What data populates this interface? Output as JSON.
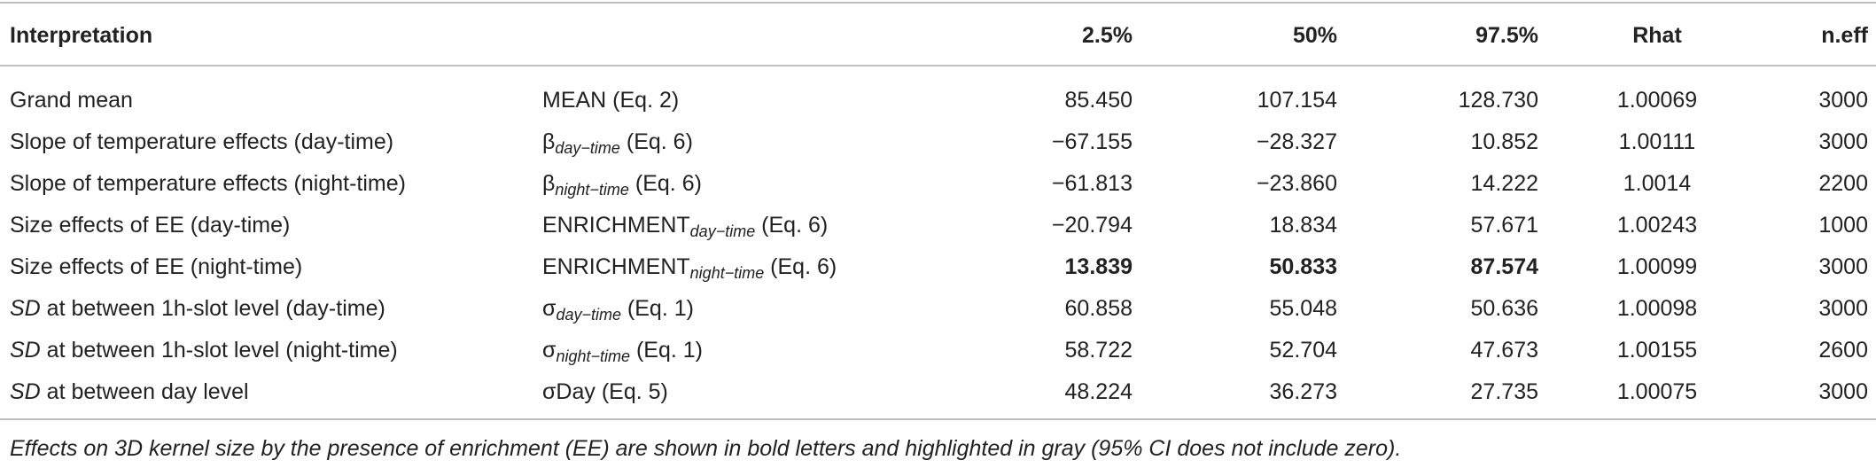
{
  "table": {
    "columns": [
      "Interpretation",
      "2.5%",
      "50%",
      "97.5%",
      "Rhat",
      "n.eff"
    ],
    "rows": [
      {
        "interpretation": {
          "text": "Grand mean"
        },
        "parameter": {
          "base": "MEAN",
          "suffix": " (Eq. 2)"
        },
        "values": [
          "85.450",
          "107.154",
          "128.730",
          "1.00069",
          "3000"
        ]
      },
      {
        "interpretation": {
          "text": "Slope of temperature effects (day-time)"
        },
        "parameter": {
          "base": "β",
          "sub": "day−time",
          "suffix": " (Eq. 6)"
        },
        "values": [
          "−67.155",
          "−28.327",
          "10.852",
          "1.00111",
          "3000"
        ]
      },
      {
        "interpretation": {
          "text": "Slope of temperature effects (night-time)"
        },
        "parameter": {
          "base": "β",
          "sub": "night−time",
          "suffix": " (Eq. 6)"
        },
        "values": [
          "−61.813",
          "−23.860",
          "14.222",
          "1.0014",
          "2200"
        ]
      },
      {
        "interpretation": {
          "text": "Size effects of EE (day-time)"
        },
        "parameter": {
          "base": "ENRICHMENT",
          "sub": "day−time",
          "suffix": " (Eq. 6)"
        },
        "values": [
          "−20.794",
          "18.834",
          "57.671",
          "1.00243",
          "1000"
        ]
      },
      {
        "interpretation": {
          "text": "Size effects of EE (night-time)"
        },
        "parameter": {
          "base": "ENRICHMENT",
          "sub": "night−time",
          "suffix": " (Eq. 6)"
        },
        "values": [
          "13.839",
          "50.833",
          "87.574",
          "1.00099",
          "3000"
        ],
        "bold": true
      },
      {
        "interpretation": {
          "italic": "SD",
          "text": " at between 1h-slot level (day-time)"
        },
        "parameter": {
          "base": "σ",
          "sub": "day−time",
          "suffix": " (Eq. 1)"
        },
        "values": [
          "60.858",
          "55.048",
          "50.636",
          "1.00098",
          "3000"
        ]
      },
      {
        "interpretation": {
          "italic": "SD",
          "text": " at between 1h-slot level (night-time)"
        },
        "parameter": {
          "base": "σ",
          "sub": "night−time",
          "suffix": " (Eq. 1)"
        },
        "values": [
          "58.722",
          "52.704",
          "47.673",
          "1.00155",
          "2600"
        ]
      },
      {
        "interpretation": {
          "italic": "SD",
          "text": " at between day level"
        },
        "parameter": {
          "base": "σDay",
          "suffix": " (Eq. 5)"
        },
        "values": [
          "48.224",
          "36.273",
          "27.735",
          "1.00075",
          "3000"
        ]
      }
    ],
    "caption": "Effects on 3D kernel size by the presence of enrichment (EE) are shown in bold letters and highlighted in gray (95% CI does not include zero)."
  }
}
